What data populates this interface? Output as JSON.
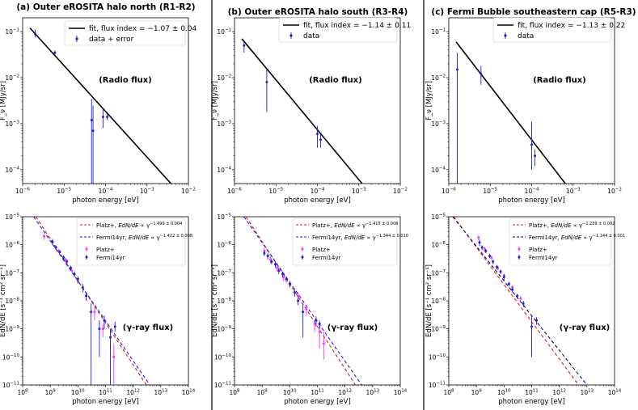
{
  "chart_data": [
    {
      "id": "a_radio",
      "type": "scatter",
      "title": "(a) Outer eROSITA halo north (R1-R2)",
      "annotation": "(Radio flux)",
      "xlabel": "photon energy [eV]",
      "ylabel": "F_ν [MJy/sr]",
      "xscale": "log",
      "yscale": "log",
      "xlim": [
        1e-06,
        0.01
      ],
      "ylim": [
        5e-05,
        0.2
      ],
      "legend": [
        "fit, flux index = −1.07 ± 0.04",
        "data + error"
      ],
      "legend_location": "top-right",
      "fit": {
        "x": [
          1.5e-06,
          0.0038
        ],
        "y": [
          0.12,
          5e-05
        ]
      },
      "series": [
        {
          "name": "data + error",
          "color": "#1f1fd6",
          "points": [
            {
              "x": 2e-06,
              "y": 0.09,
              "lo": 0.075,
              "hi": 0.11
            },
            {
              "x": 6e-06,
              "y": 0.035,
              "lo": 0.031,
              "hi": 0.039
            },
            {
              "x": 4.6e-05,
              "y": 0.0012,
              "lo": 5e-05,
              "hi": 0.0035
            },
            {
              "x": 5e-05,
              "y": 0.0007,
              "lo": 5e-05,
              "hi": 0.0025
            },
            {
              "x": 8.7e-05,
              "y": 0.0014,
              "lo": 0.0008,
              "hi": 0.0022
            },
            {
              "x": 0.00011,
              "y": 0.0014,
              "lo": 0.0012,
              "hi": 0.0016
            }
          ]
        }
      ]
    },
    {
      "id": "b_radio",
      "type": "scatter",
      "title": "(b) Outer eROSITA halo south (R3-R4)",
      "annotation": "(Radio flux)",
      "xlabel": "photon energy [eV]",
      "ylabel": "F_ν [MJy/sr]",
      "xscale": "log",
      "yscale": "log",
      "xlim": [
        1e-06,
        0.01
      ],
      "ylim": [
        5e-05,
        0.2
      ],
      "legend": [
        "fit, flux index = −1.14 ± 0.11",
        "data"
      ],
      "legend_location": "top-right",
      "fit": {
        "x": [
          1.5e-06,
          0.0012
        ],
        "y": [
          0.07,
          5e-05
        ]
      },
      "series": [
        {
          "name": "data",
          "color": "#1f1fd6",
          "points": [
            {
              "x": 1.7e-06,
              "y": 0.05,
              "lo": 0.035,
              "hi": 0.06
            },
            {
              "x": 6e-06,
              "y": 0.008,
              "lo": 0.0018,
              "hi": 0.015
            },
            {
              "x": 0.0001,
              "y": 0.0006,
              "lo": 0.0003,
              "hi": 0.0009
            },
            {
              "x": 0.00012,
              "y": 0.00045,
              "lo": 0.0003,
              "hi": 0.0006
            }
          ]
        }
      ]
    },
    {
      "id": "c_radio",
      "type": "scatter",
      "title": "(c) Fermi Bubble southeastern cap (R5-R3)",
      "annotation": "(Radio flux)",
      "xlabel": "photon energy [eV]",
      "ylabel": "F_ν [MJy/sr]",
      "xscale": "log",
      "yscale": "log",
      "xlim": [
        1e-06,
        0.01
      ],
      "ylim": [
        5e-05,
        0.2
      ],
      "legend": [
        "fit, flux index = −1.13 ± 0.22",
        "data"
      ],
      "legend_location": "top-right",
      "fit": {
        "x": [
          1.5e-06,
          0.00065
        ],
        "y": [
          0.06,
          5e-05
        ]
      },
      "series": [
        {
          "name": "data",
          "color": "#1f1fd6",
          "points": [
            {
              "x": 1.6e-06,
              "y": 0.015,
              "lo": 5e-05,
              "hi": 0.035
            },
            {
              "x": 6e-06,
              "y": 0.012,
              "lo": 0.007,
              "hi": 0.018
            },
            {
              "x": 0.0001,
              "y": 0.00035,
              "lo": 0.0001,
              "hi": 0.0011
            },
            {
              "x": 0.00012,
              "y": 0.0002,
              "lo": 0.00012,
              "hi": 0.00028
            }
          ]
        }
      ]
    },
    {
      "id": "a_gamma",
      "type": "scatter",
      "annotation": "(γ-ray flux)",
      "xlabel": "photon energy [eV]",
      "ylabel": "EdN/dE [s⁻¹ cm² sr⁻¹]",
      "xscale": "log",
      "yscale": "log",
      "xlim": [
        100000000.0,
        100000000000000.0
      ],
      "ylim": [
        1e-11,
        1e-05
      ],
      "legend_location": "top-right",
      "fits": [
        {
          "label": "Platz+, ",
          "label_italic": "EdN/dE",
          "label_tail": " ∝ γ",
          "exponent": "−1.499 ± 0.004",
          "color": "#e41a1c",
          "dash": "4,3",
          "x": [
            300000000.0,
            3000000000000.0
          ],
          "y": [
            1e-05,
            1e-11
          ]
        },
        {
          "label": "Fermi14yr, ",
          "label_italic": "EdN/dE",
          "label_tail": " ∝ γ",
          "exponent": "−1.422 ± 0.008",
          "color": "#1f1fd6",
          "dash": "4,3",
          "x": [
            250000000.0,
            4000000000000.0
          ],
          "y": [
            1e-05,
            1e-11
          ]
        }
      ],
      "series": [
        {
          "name": "Platz+",
          "color": "#ff33ff",
          "points": [
            {
              "x": 600000000.0,
              "y": 2e-06,
              "lo": 1.5e-06,
              "hi": 2.5e-06
            },
            {
              "x": 1200000000.0,
              "y": 1.2e-06,
              "lo": 1e-06,
              "hi": 1.4e-06
            },
            {
              "x": 2000000000.0,
              "y": 6e-07,
              "lo": 5e-07,
              "hi": 7e-07
            },
            {
              "x": 3500000000.0,
              "y": 3e-07,
              "lo": 2.5e-07,
              "hi": 3.5e-07
            },
            {
              "x": 6000000000.0,
              "y": 1.2e-07,
              "lo": 1e-07,
              "hi": 1.4e-07
            },
            {
              "x": 10000000000.0,
              "y": 5e-08,
              "lo": 4e-08,
              "hi": 6e-08
            },
            {
              "x": 20000000000.0,
              "y": 1.5e-08,
              "lo": 1e-08,
              "hi": 2e-08
            },
            {
              "x": 40000000000.0,
              "y": 4e-09,
              "lo": 2e-09,
              "hi": 6e-09
            },
            {
              "x": 80000000000.0,
              "y": 1e-09,
              "lo": 5e-10,
              "hi": 1.5e-09
            },
            {
              "x": 150000000000.0,
              "y": 5e-10,
              "lo": 1e-10,
              "hi": 1e-09
            },
            {
              "x": 200000000000.0,
              "y": 1e-10,
              "lo": 1e-11,
              "hi": 3e-10
            }
          ]
        },
        {
          "name": "Fermi14yr",
          "color": "#1f1fd6",
          "points": [
            {
              "x": 1200000000.0,
              "y": 1.3e-06,
              "lo": 1e-06,
              "hi": 1.6e-06
            },
            {
              "x": 1600000000.0,
              "y": 8e-07,
              "lo": 6.5e-07,
              "hi": 9.5e-07
            },
            {
              "x": 2200000000.0,
              "y": 5.5e-07,
              "lo": 4.5e-07,
              "hi": 6.5e-07
            },
            {
              "x": 3000000000.0,
              "y": 3.5e-07,
              "lo": 2.8e-07,
              "hi": 4.2e-07
            },
            {
              "x": 4000000000.0,
              "y": 2.5e-07,
              "lo": 2e-07,
              "hi": 3e-07
            },
            {
              "x": 5500000000.0,
              "y": 1.5e-07,
              "lo": 1.2e-07,
              "hi": 1.8e-07
            },
            {
              "x": 7500000000.0,
              "y": 9e-08,
              "lo": 7e-08,
              "hi": 1.1e-07
            },
            {
              "x": 10000000000.0,
              "y": 6e-08,
              "lo": 4.5e-08,
              "hi": 7.5e-08
            },
            {
              "x": 15000000000.0,
              "y": 3e-08,
              "lo": 2e-08,
              "hi": 4e-08
            },
            {
              "x": 20000000000.0,
              "y": 1.5e-08,
              "lo": 1e-08,
              "hi": 2e-08
            },
            {
              "x": 30000000000.0,
              "y": 4e-09,
              "lo": 1e-11,
              "hi": 8e-09
            },
            {
              "x": 60000000000.0,
              "y": 1e-09,
              "lo": 1e-10,
              "hi": 2e-09
            },
            {
              "x": 90000000000.0,
              "y": 2e-09,
              "lo": 1e-09,
              "hi": 3e-09
            },
            {
              "x": 150000000000.0,
              "y": 5e-10,
              "lo": 1e-11,
              "hi": 1e-09
            },
            {
              "x": 220000000000.0,
              "y": 1.2e-09,
              "lo": 8e-10,
              "hi": 1.8e-09
            }
          ]
        }
      ]
    },
    {
      "id": "b_gamma",
      "type": "scatter",
      "annotation": "(γ-ray flux)",
      "xlabel": "photon energy [eV]",
      "ylabel": "EdN/dE [s⁻¹ cm² sr⁻¹]",
      "xscale": "log",
      "yscale": "log",
      "xlim": [
        100000000.0,
        100000000000000.0
      ],
      "ylim": [
        1e-11,
        1e-05
      ],
      "legend_location": "top-right",
      "fits": [
        {
          "label": "Platz+, ",
          "label_italic": "EdN/dE",
          "label_tail": " ∝ γ",
          "exponent": "−1.415 ± 0.006",
          "color": "#e41a1c",
          "dash": "4,3",
          "x": [
            260000000.0,
            2400000000000.0
          ],
          "y": [
            1e-05,
            1e-11
          ]
        },
        {
          "label": "Fermi14yr, ",
          "label_italic": "EdN/dE",
          "label_tail": " ∝ γ",
          "exponent": "−1.344 ± 0.010",
          "color": "#1f1fd6",
          "dash": "4,3",
          "x": [
            220000000.0,
            4000000000000.0
          ],
          "y": [
            1e-05,
            1e-11
          ]
        }
      ],
      "series": [
        {
          "name": "Platz+",
          "color": "#ff33ff",
          "points": [
            {
              "x": 1200000000.0,
              "y": 6e-07,
              "lo": 4e-07,
              "hi": 8e-07
            },
            {
              "x": 2000000000.0,
              "y": 3e-07,
              "lo": 2.2e-07,
              "hi": 3.8e-07
            },
            {
              "x": 3500000000.0,
              "y": 1.5e-07,
              "lo": 1.1e-07,
              "hi": 1.9e-07
            },
            {
              "x": 6000000000.0,
              "y": 7e-08,
              "lo": 5e-08,
              "hi": 9e-08
            },
            {
              "x": 10000000000.0,
              "y": 4e-08,
              "lo": 3e-08,
              "hi": 5e-08
            },
            {
              "x": 20000000000.0,
              "y": 1.5e-08,
              "lo": 1e-08,
              "hi": 2e-08
            },
            {
              "x": 40000000000.0,
              "y": 5e-09,
              "lo": 3e-09,
              "hi": 7e-09
            },
            {
              "x": 80000000000.0,
              "y": 1.5e-09,
              "lo": 8e-10,
              "hi": 2.2e-09
            },
            {
              "x": 120000000000.0,
              "y": 8e-10,
              "lo": 2e-10,
              "hi": 1.5e-09
            },
            {
              "x": 170000000000.0,
              "y": 3e-10,
              "lo": 8e-11,
              "hi": 8e-10
            }
          ]
        },
        {
          "name": "Fermi14yr",
          "color": "#1f1fd6",
          "points": [
            {
              "x": 1200000000.0,
              "y": 5e-07,
              "lo": 4e-07,
              "hi": 6e-07
            },
            {
              "x": 1600000000.0,
              "y": 4e-07,
              "lo": 3e-07,
              "hi": 5e-07
            },
            {
              "x": 2200000000.0,
              "y": 2.5e-07,
              "lo": 2e-07,
              "hi": 3e-07
            },
            {
              "x": 3000000000.0,
              "y": 2e-07,
              "lo": 1.5e-07,
              "hi": 2.5e-07
            },
            {
              "x": 4000000000.0,
              "y": 1.2e-07,
              "lo": 9e-08,
              "hi": 1.5e-07
            },
            {
              "x": 5500000000.0,
              "y": 9e-08,
              "lo": 7e-08,
              "hi": 1.1e-07
            },
            {
              "x": 7500000000.0,
              "y": 6e-08,
              "lo": 4.5e-08,
              "hi": 7.5e-08
            },
            {
              "x": 10000000000.0,
              "y": 4e-08,
              "lo": 3e-08,
              "hi": 5e-08
            },
            {
              "x": 15000000000.0,
              "y": 2e-08,
              "lo": 1.4e-08,
              "hi": 2.6e-08
            },
            {
              "x": 20000000000.0,
              "y": 1e-08,
              "lo": 7e-09,
              "hi": 1.3e-08
            },
            {
              "x": 30000000000.0,
              "y": 4e-09,
              "lo": 5e-10,
              "hi": 8e-09
            },
            {
              "x": 90000000000.0,
              "y": 2e-09,
              "lo": 1.2e-09,
              "hi": 2.8e-09
            },
            {
              "x": 120000000000.0,
              "y": 1.5e-09,
              "lo": 1e-09,
              "hi": 2e-09
            }
          ]
        }
      ]
    },
    {
      "id": "c_gamma",
      "type": "scatter",
      "annotation": "(γ-ray flux)",
      "xlabel": "photon energy [eV]",
      "ylabel": "EdN/dE [s⁻¹ cm² sr⁻¹]",
      "xscale": "log",
      "yscale": "log",
      "xlim": [
        100000000.0,
        100000000000000.0
      ],
      "ylim": [
        1e-11,
        1e-05
      ],
      "legend_location": "top-right",
      "fits": [
        {
          "label": "Platz+, ",
          "label_italic": "EdN/dE",
          "label_tail": " ∝ γ",
          "exponent": "−1.239 ± 0.002",
          "color": "#e41a1c",
          "dash": "4,3",
          "x": [
            150000000.0,
            5000000000000.0
          ],
          "y": [
            1e-05,
            1e-11
          ]
        },
        {
          "label": "Fermi14yr, ",
          "label_italic": "EdN/dE",
          "label_tail": " ∝ γ",
          "exponent": "−1.144 ± 0.001",
          "color": "#000080",
          "dash": "4,3",
          "x": [
            140000000.0,
            10000000000000.0
          ],
          "y": [
            1e-05,
            1e-11
          ]
        }
      ],
      "series": [
        {
          "name": "Platz+",
          "color": "#ff33ff",
          "points": [
            {
              "x": 1200000000.0,
              "y": 1.8e-06,
              "lo": 1.4e-06,
              "hi": 2.2e-06
            },
            {
              "x": 2000000000.0,
              "y": 7e-07,
              "lo": 5.5e-07,
              "hi": 8.5e-07
            },
            {
              "x": 3500000000.0,
              "y": 3.5e-07,
              "lo": 2.8e-07,
              "hi": 4.2e-07
            },
            {
              "x": 6000000000.0,
              "y": 1.5e-07,
              "lo": 1.2e-07,
              "hi": 1.8e-07
            },
            {
              "x": 10000000000.0,
              "y": 8e-08,
              "lo": 6.5e-08,
              "hi": 9.5e-08
            },
            {
              "x": 20000000000.0,
              "y": 3e-08,
              "lo": 2.4e-08,
              "hi": 3.6e-08
            },
            {
              "x": 40000000000.0,
              "y": 1.2e-08,
              "lo": 9e-09,
              "hi": 1.5e-08
            }
          ]
        },
        {
          "name": "Fermi14yr",
          "color": "#1f1fd6",
          "points": [
            {
              "x": 1300000000.0,
              "y": 1.2e-06,
              "lo": 9e-07,
              "hi": 1.5e-06
            },
            {
              "x": 1600000000.0,
              "y": 8e-07,
              "lo": 6.5e-07,
              "hi": 9.5e-07
            },
            {
              "x": 2200000000.0,
              "y": 6e-07,
              "lo": 5e-07,
              "hi": 7e-07
            },
            {
              "x": 3000000000.0,
              "y": 4e-07,
              "lo": 3.3e-07,
              "hi": 4.7e-07
            },
            {
              "x": 4000000000.0,
              "y": 2.5e-07,
              "lo": 2e-07,
              "hi": 3e-07
            },
            {
              "x": 5500000000.0,
              "y": 1.6e-07,
              "lo": 1.3e-07,
              "hi": 1.9e-07
            },
            {
              "x": 7500000000.0,
              "y": 1.1e-07,
              "lo": 9e-08,
              "hi": 1.3e-07
            },
            {
              "x": 10000000000.0,
              "y": 7e-08,
              "lo": 5.5e-08,
              "hi": 8.5e-08
            },
            {
              "x": 15000000000.0,
              "y": 4e-08,
              "lo": 3.2e-08,
              "hi": 4.8e-08
            },
            {
              "x": 20000000000.0,
              "y": 2.5e-08,
              "lo": 2e-08,
              "hi": 3e-08
            },
            {
              "x": 30000000000.0,
              "y": 1.5e-08,
              "lo": 1.2e-08,
              "hi": 1.8e-08
            },
            {
              "x": 50000000000.0,
              "y": 8e-09,
              "lo": 6e-09,
              "hi": 1e-08
            },
            {
              "x": 100000000000.0,
              "y": 1.2e-09,
              "lo": 1e-10,
              "hi": 3e-09
            },
            {
              "x": 150000000000.0,
              "y": 2e-09,
              "lo": 1.4e-09,
              "hi": 2.6e-09
            }
          ]
        }
      ]
    }
  ]
}
